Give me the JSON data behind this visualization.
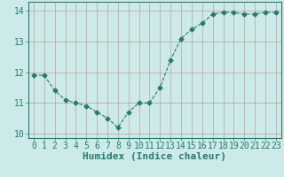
{
  "x": [
    0,
    1,
    2,
    3,
    4,
    5,
    6,
    7,
    8,
    9,
    10,
    11,
    12,
    13,
    14,
    15,
    16,
    17,
    18,
    19,
    20,
    21,
    22,
    23
  ],
  "y": [
    11.9,
    11.9,
    11.4,
    11.1,
    11.0,
    10.9,
    10.7,
    10.5,
    10.2,
    10.7,
    11.0,
    11.0,
    11.5,
    12.4,
    13.1,
    13.4,
    13.6,
    13.9,
    13.95,
    13.95,
    13.9,
    13.9,
    13.95,
    13.95
  ],
  "line_color": "#2a7a6a",
  "marker": "D",
  "marker_size": 2.5,
  "bg_color": "#cceae8",
  "grid_color": "#c0a0a0",
  "xlabel": "Humidex (Indice chaleur)",
  "xlabel_fontsize": 8,
  "tick_fontsize": 7,
  "xlim": [
    -0.5,
    23.5
  ],
  "ylim": [
    9.85,
    14.3
  ],
  "yticks": [
    10,
    11,
    12,
    13,
    14
  ],
  "xticks": [
    0,
    1,
    2,
    3,
    4,
    5,
    6,
    7,
    8,
    9,
    10,
    11,
    12,
    13,
    14,
    15,
    16,
    17,
    18,
    19,
    20,
    21,
    22,
    23
  ]
}
